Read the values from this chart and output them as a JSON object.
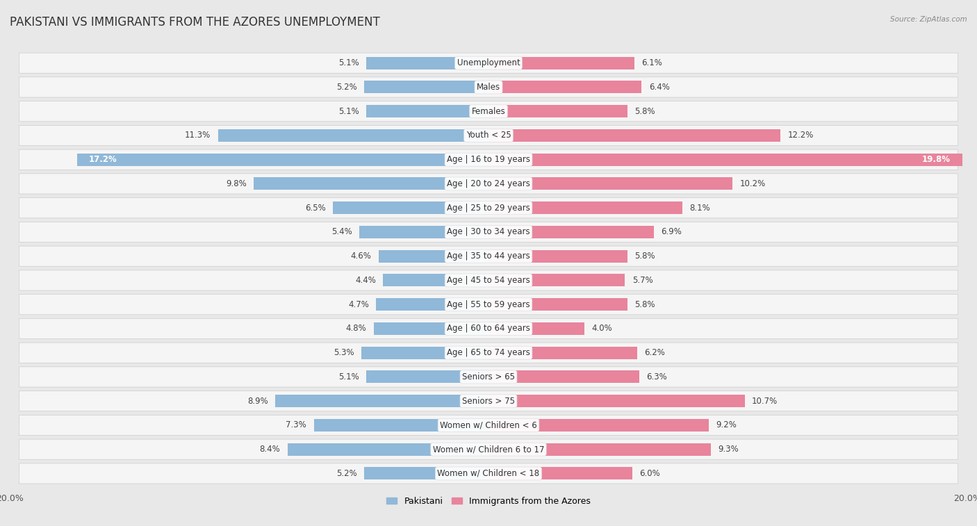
{
  "title": "PAKISTANI VS IMMIGRANTS FROM THE AZORES UNEMPLOYMENT",
  "source": "Source: ZipAtlas.com",
  "categories": [
    "Unemployment",
    "Males",
    "Females",
    "Youth < 25",
    "Age | 16 to 19 years",
    "Age | 20 to 24 years",
    "Age | 25 to 29 years",
    "Age | 30 to 34 years",
    "Age | 35 to 44 years",
    "Age | 45 to 54 years",
    "Age | 55 to 59 years",
    "Age | 60 to 64 years",
    "Age | 65 to 74 years",
    "Seniors > 65",
    "Seniors > 75",
    "Women w/ Children < 6",
    "Women w/ Children 6 to 17",
    "Women w/ Children < 18"
  ],
  "pakistani": [
    5.1,
    5.2,
    5.1,
    11.3,
    17.2,
    9.8,
    6.5,
    5.4,
    4.6,
    4.4,
    4.7,
    4.8,
    5.3,
    5.1,
    8.9,
    7.3,
    8.4,
    5.2
  ],
  "azores": [
    6.1,
    6.4,
    5.8,
    12.2,
    19.8,
    10.2,
    8.1,
    6.9,
    5.8,
    5.7,
    5.8,
    4.0,
    6.2,
    6.3,
    10.7,
    9.2,
    9.3,
    6.0
  ],
  "pakistani_color": "#90b8d8",
  "azores_color": "#e8849c",
  "pakistani_label": "Pakistani",
  "azores_label": "Immigrants from the Azores",
  "axis_limit": 20.0,
  "bg_color": "#e8e8e8",
  "row_bg_color": "#f5f5f5",
  "title_fontsize": 12,
  "label_fontsize": 8.5,
  "value_fontsize": 8.5,
  "title_color": "#333333",
  "source_color": "#888888",
  "value_color": "#444444"
}
